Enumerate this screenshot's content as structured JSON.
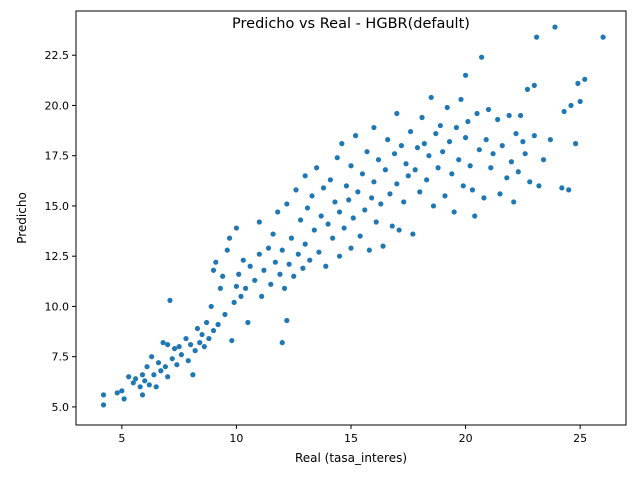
{
  "chart_data": {
    "type": "scatter",
    "title": "Predicho vs Real - HGBR(default)",
    "xlabel": "Real (tasa_interes)",
    "ylabel": "Predicho",
    "xlim": [
      3.0,
      27.0
    ],
    "ylim": [
      4.1,
      24.7
    ],
    "xticks": [
      5,
      10,
      15,
      20,
      25
    ],
    "xtick_labels": [
      "5",
      "10",
      "15",
      "20",
      "25"
    ],
    "yticks": [
      5.0,
      7.5,
      10.0,
      12.5,
      15.0,
      17.5,
      20.0,
      22.5
    ],
    "ytick_labels": [
      "5.0",
      "7.5",
      "10.0",
      "12.5",
      "15.0",
      "17.5",
      "20.0",
      "22.5"
    ],
    "grid": false,
    "marker_color": "#1f77b4",
    "series": [
      {
        "points": [
          [
            4.2,
            5.1
          ],
          [
            4.2,
            5.6
          ],
          [
            4.8,
            5.7
          ],
          [
            5.0,
            5.8
          ],
          [
            5.1,
            5.4
          ],
          [
            5.3,
            6.5
          ],
          [
            5.5,
            6.2
          ],
          [
            5.6,
            6.4
          ],
          [
            5.8,
            6.0
          ],
          [
            5.9,
            5.6
          ],
          [
            5.9,
            6.6
          ],
          [
            6.0,
            6.3
          ],
          [
            6.1,
            7.0
          ],
          [
            6.2,
            6.1
          ],
          [
            6.3,
            7.5
          ],
          [
            6.4,
            6.6
          ],
          [
            6.5,
            6.0
          ],
          [
            6.6,
            7.2
          ],
          [
            6.7,
            6.8
          ],
          [
            6.8,
            8.2
          ],
          [
            6.9,
            7.0
          ],
          [
            7.0,
            6.5
          ],
          [
            7.0,
            8.1
          ],
          [
            7.1,
            10.3
          ],
          [
            7.2,
            7.4
          ],
          [
            7.3,
            7.9
          ],
          [
            7.4,
            7.1
          ],
          [
            7.5,
            8.0
          ],
          [
            7.6,
            7.6
          ],
          [
            7.8,
            8.4
          ],
          [
            7.9,
            7.3
          ],
          [
            8.0,
            8.1
          ],
          [
            8.1,
            6.6
          ],
          [
            8.2,
            7.8
          ],
          [
            8.3,
            8.9
          ],
          [
            8.4,
            8.2
          ],
          [
            8.5,
            8.6
          ],
          [
            8.6,
            8.0
          ],
          [
            8.7,
            9.2
          ],
          [
            8.8,
            8.4
          ],
          [
            8.9,
            10.0
          ],
          [
            9.0,
            8.8
          ],
          [
            9.0,
            11.8
          ],
          [
            9.1,
            12.2
          ],
          [
            9.2,
            9.1
          ],
          [
            9.3,
            10.9
          ],
          [
            9.4,
            11.5
          ],
          [
            9.5,
            9.6
          ],
          [
            9.6,
            12.8
          ],
          [
            9.7,
            13.4
          ],
          [
            9.8,
            8.3
          ],
          [
            9.9,
            10.2
          ],
          [
            10.0,
            11.0
          ],
          [
            10.0,
            13.9
          ],
          [
            10.1,
            11.6
          ],
          [
            10.2,
            10.5
          ],
          [
            10.3,
            12.3
          ],
          [
            10.4,
            10.9
          ],
          [
            10.5,
            9.2
          ],
          [
            10.6,
            12.0
          ],
          [
            10.8,
            11.3
          ],
          [
            11.0,
            12.6
          ],
          [
            11.0,
            14.2
          ],
          [
            11.1,
            10.5
          ],
          [
            11.2,
            11.8
          ],
          [
            11.4,
            12.9
          ],
          [
            11.5,
            11.1
          ],
          [
            11.6,
            13.6
          ],
          [
            11.7,
            12.2
          ],
          [
            11.8,
            14.7
          ],
          [
            11.9,
            11.6
          ],
          [
            12.0,
            8.2
          ],
          [
            12.0,
            12.8
          ],
          [
            12.1,
            10.9
          ],
          [
            12.2,
            9.3
          ],
          [
            12.2,
            15.1
          ],
          [
            12.3,
            12.1
          ],
          [
            12.4,
            13.4
          ],
          [
            12.5,
            11.5
          ],
          [
            12.6,
            15.8
          ],
          [
            12.7,
            12.6
          ],
          [
            12.8,
            14.3
          ],
          [
            12.9,
            11.9
          ],
          [
            13.0,
            16.5
          ],
          [
            13.0,
            13.1
          ],
          [
            13.1,
            14.9
          ],
          [
            13.2,
            12.3
          ],
          [
            13.3,
            15.5
          ],
          [
            13.4,
            13.8
          ],
          [
            13.5,
            16.9
          ],
          [
            13.6,
            12.7
          ],
          [
            13.7,
            14.5
          ],
          [
            13.8,
            15.9
          ],
          [
            13.9,
            12.0
          ],
          [
            14.0,
            14.1
          ],
          [
            14.1,
            16.3
          ],
          [
            14.2,
            13.4
          ],
          [
            14.3,
            15.2
          ],
          [
            14.4,
            17.4
          ],
          [
            14.5,
            12.5
          ],
          [
            14.5,
            14.7
          ],
          [
            14.6,
            18.1
          ],
          [
            14.7,
            13.9
          ],
          [
            14.8,
            16.0
          ],
          [
            14.9,
            15.3
          ],
          [
            15.0,
            12.9
          ],
          [
            15.0,
            17.0
          ],
          [
            15.1,
            14.4
          ],
          [
            15.2,
            18.5
          ],
          [
            15.3,
            15.7
          ],
          [
            15.4,
            13.5
          ],
          [
            15.5,
            16.6
          ],
          [
            15.6,
            14.8
          ],
          [
            15.7,
            17.7
          ],
          [
            15.8,
            12.8
          ],
          [
            15.9,
            15.4
          ],
          [
            16.0,
            18.9
          ],
          [
            16.0,
            16.2
          ],
          [
            16.1,
            14.2
          ],
          [
            16.2,
            17.3
          ],
          [
            16.3,
            15.1
          ],
          [
            16.4,
            13.0
          ],
          [
            16.5,
            16.8
          ],
          [
            16.6,
            18.3
          ],
          [
            16.7,
            15.6
          ],
          [
            16.8,
            14.0
          ],
          [
            16.9,
            17.6
          ],
          [
            17.0,
            16.1
          ],
          [
            17.0,
            19.6
          ],
          [
            17.1,
            13.8
          ],
          [
            17.2,
            18.0
          ],
          [
            17.3,
            15.2
          ],
          [
            17.4,
            17.1
          ],
          [
            17.5,
            16.5
          ],
          [
            17.6,
            18.7
          ],
          [
            17.7,
            13.6
          ],
          [
            17.8,
            16.8
          ],
          [
            17.9,
            17.9
          ],
          [
            18.0,
            15.7
          ],
          [
            18.1,
            19.4
          ],
          [
            18.2,
            18.1
          ],
          [
            18.3,
            16.3
          ],
          [
            18.4,
            17.5
          ],
          [
            18.5,
            20.4
          ],
          [
            18.6,
            15.0
          ],
          [
            18.7,
            18.6
          ],
          [
            18.8,
            16.9
          ],
          [
            18.9,
            19.0
          ],
          [
            19.0,
            17.7
          ],
          [
            19.1,
            15.5
          ],
          [
            19.2,
            19.9
          ],
          [
            19.3,
            18.2
          ],
          [
            19.4,
            16.6
          ],
          [
            19.5,
            14.7
          ],
          [
            19.6,
            18.9
          ],
          [
            19.7,
            17.3
          ],
          [
            19.8,
            20.3
          ],
          [
            19.9,
            16.0
          ],
          [
            20.0,
            18.4
          ],
          [
            20.0,
            21.5
          ],
          [
            20.1,
            19.2
          ],
          [
            20.2,
            17.0
          ],
          [
            20.3,
            15.8
          ],
          [
            20.4,
            14.5
          ],
          [
            20.5,
            19.6
          ],
          [
            20.6,
            17.8
          ],
          [
            20.7,
            22.4
          ],
          [
            20.8,
            15.4
          ],
          [
            20.9,
            18.3
          ],
          [
            21.0,
            19.8
          ],
          [
            21.1,
            16.9
          ],
          [
            21.2,
            17.6
          ],
          [
            21.4,
            19.3
          ],
          [
            21.5,
            15.6
          ],
          [
            21.6,
            18.0
          ],
          [
            21.8,
            16.4
          ],
          [
            21.9,
            19.5
          ],
          [
            22.0,
            17.2
          ],
          [
            22.1,
            15.2
          ],
          [
            22.2,
            18.6
          ],
          [
            22.3,
            16.7
          ],
          [
            22.4,
            19.5
          ],
          [
            22.5,
            18.2
          ],
          [
            22.6,
            17.6
          ],
          [
            22.7,
            20.8
          ],
          [
            22.8,
            16.2
          ],
          [
            23.0,
            21.0
          ],
          [
            23.0,
            18.5
          ],
          [
            23.1,
            23.4
          ],
          [
            23.2,
            16.0
          ],
          [
            23.4,
            17.3
          ],
          [
            23.7,
            18.3
          ],
          [
            23.9,
            23.9
          ],
          [
            24.2,
            15.9
          ],
          [
            24.3,
            19.7
          ],
          [
            24.5,
            15.8
          ],
          [
            24.6,
            20.0
          ],
          [
            24.8,
            18.1
          ],
          [
            24.9,
            21.1
          ],
          [
            25.0,
            20.2
          ],
          [
            25.2,
            21.3
          ],
          [
            26.0,
            23.4
          ]
        ]
      }
    ]
  }
}
